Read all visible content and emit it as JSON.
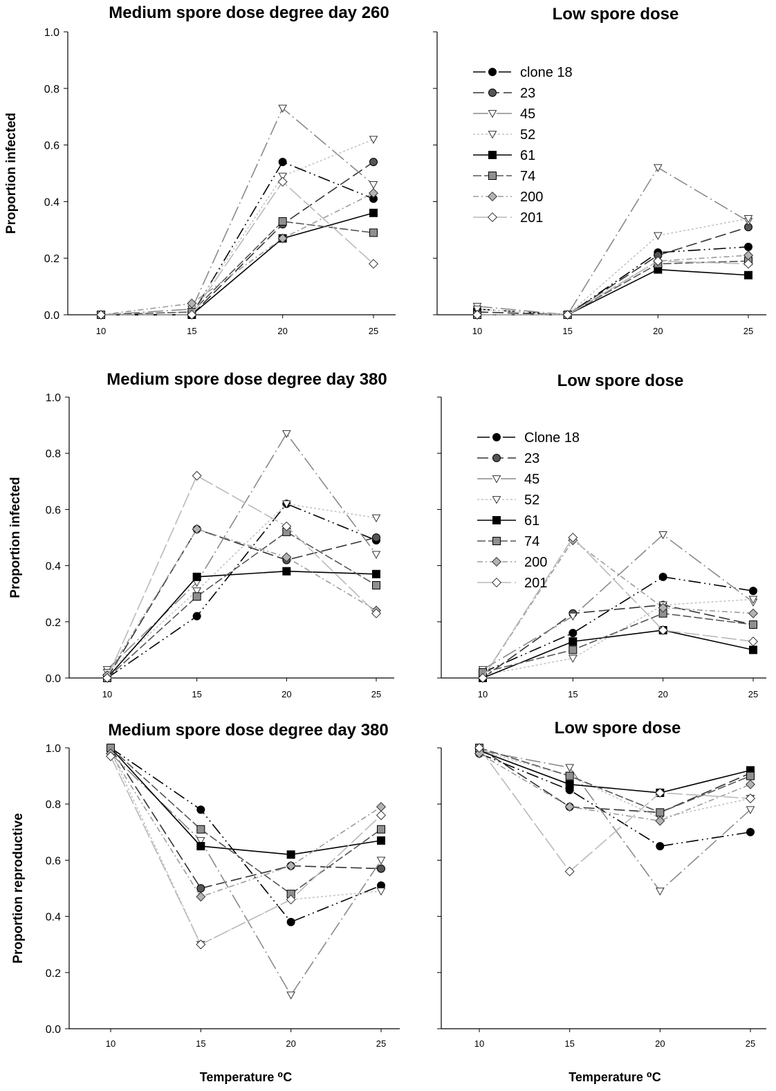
{
  "chart_data": [
    {
      "type": "line",
      "title": "Medium spore dose degree day 260",
      "ylabel": "Proportion  infected",
      "xlabel": "",
      "x": [
        10,
        15,
        20,
        25
      ],
      "ylim": [
        0,
        1
      ],
      "yticks": [
        "0.0",
        "0.2",
        "0.4",
        "0.6",
        "0.8",
        "1.0"
      ],
      "xticks": [
        "10",
        "15",
        "20",
        "25"
      ],
      "legend": null,
      "series": [
        {
          "name": "clone 18",
          "values": [
            0.0,
            0.0,
            0.54,
            0.41
          ]
        },
        {
          "name": "23",
          "values": [
            0.0,
            0.0,
            0.32,
            0.54
          ]
        },
        {
          "name": "45",
          "values": [
            0.0,
            0.02,
            0.73,
            0.46
          ]
        },
        {
          "name": "52",
          "values": [
            0.0,
            0.01,
            0.49,
            0.62
          ]
        },
        {
          "name": "61",
          "values": [
            0.0,
            0.0,
            0.27,
            0.36
          ]
        },
        {
          "name": "74",
          "values": [
            0.0,
            0.01,
            0.33,
            0.29
          ]
        },
        {
          "name": "200",
          "values": [
            0.0,
            0.04,
            0.27,
            0.43
          ]
        },
        {
          "name": "201",
          "values": [
            0.0,
            0.0,
            0.47,
            0.18
          ]
        }
      ]
    },
    {
      "type": "line",
      "title": "Low spore dose",
      "ylabel": "",
      "xlabel": "",
      "x": [
        10,
        15,
        20,
        25
      ],
      "ylim": [
        0,
        1
      ],
      "yticks": [],
      "xticks": [
        "10",
        "15",
        "20",
        "25"
      ],
      "legend": {
        "position": "top-left",
        "labels": [
          "clone 18",
          "23",
          "45",
          "52",
          "61",
          "74",
          "200",
          "201"
        ]
      },
      "series": [
        {
          "name": "clone 18",
          "values": [
            0.02,
            0.0,
            0.22,
            0.24
          ]
        },
        {
          "name": "23",
          "values": [
            0.01,
            0.0,
            0.21,
            0.31
          ]
        },
        {
          "name": "45",
          "values": [
            0.03,
            0.0,
            0.52,
            0.33
          ]
        },
        {
          "name": "52",
          "values": [
            0.02,
            0.0,
            0.28,
            0.34
          ]
        },
        {
          "name": "61",
          "values": [
            0.0,
            0.0,
            0.16,
            0.14
          ]
        },
        {
          "name": "74",
          "values": [
            0.0,
            0.0,
            0.18,
            0.19
          ]
        },
        {
          "name": "200",
          "values": [
            0.0,
            0.0,
            0.19,
            0.21
          ]
        },
        {
          "name": "201",
          "values": [
            0.0,
            0.0,
            0.19,
            0.18
          ]
        }
      ]
    },
    {
      "type": "line",
      "title": "Medium spore dose degree day 380",
      "ylabel": "Proportion  infected",
      "xlabel": "",
      "x": [
        10,
        15,
        20,
        25
      ],
      "ylim": [
        0,
        1
      ],
      "yticks": [
        "0.0",
        "0.2",
        "0.4",
        "0.6",
        "0.8",
        "1.0"
      ],
      "xticks": [
        "10",
        "15",
        "20",
        "25"
      ],
      "legend": null,
      "series": [
        {
          "name": "Clone 18",
          "values": [
            0.0,
            0.22,
            0.62,
            0.49
          ]
        },
        {
          "name": "23",
          "values": [
            0.0,
            0.53,
            0.42,
            0.5
          ]
        },
        {
          "name": "45",
          "values": [
            0.03,
            0.34,
            0.87,
            0.44
          ]
        },
        {
          "name": "52",
          "values": [
            0.02,
            0.31,
            0.62,
            0.57
          ]
        },
        {
          "name": "61",
          "values": [
            0.0,
            0.36,
            0.38,
            0.37
          ]
        },
        {
          "name": "74",
          "values": [
            0.0,
            0.29,
            0.52,
            0.33
          ]
        },
        {
          "name": "200",
          "values": [
            0.01,
            0.53,
            0.43,
            0.24
          ]
        },
        {
          "name": "201",
          "values": [
            0.0,
            0.72,
            0.54,
            0.23
          ]
        }
      ]
    },
    {
      "type": "line",
      "title": "Low spore dose",
      "ylabel": "",
      "xlabel": "",
      "x": [
        10,
        15,
        20,
        25
      ],
      "ylim": [
        0,
        1
      ],
      "yticks": [],
      "xticks": [
        "10",
        "15",
        "20",
        "25"
      ],
      "legend": {
        "position": "top-left",
        "labels": [
          "Clone 18",
          "23",
          "45",
          "52",
          "61",
          "74",
          "200",
          "201"
        ]
      },
      "series": [
        {
          "name": "Clone 18",
          "values": [
            0.02,
            0.16,
            0.36,
            0.31
          ]
        },
        {
          "name": "23",
          "values": [
            0.0,
            0.23,
            0.26,
            0.19
          ]
        },
        {
          "name": "45",
          "values": [
            0.03,
            0.22,
            0.51,
            0.27
          ]
        },
        {
          "name": "52",
          "values": [
            0.01,
            0.07,
            0.26,
            0.28
          ]
        },
        {
          "name": "61",
          "values": [
            0.0,
            0.13,
            0.17,
            0.1
          ]
        },
        {
          "name": "74",
          "values": [
            0.02,
            0.1,
            0.23,
            0.19
          ]
        },
        {
          "name": "200",
          "values": [
            0.0,
            0.49,
            0.25,
            0.23
          ]
        },
        {
          "name": "201",
          "values": [
            0.0,
            0.5,
            0.17,
            0.13
          ]
        }
      ]
    },
    {
      "type": "line",
      "title": "Medium spore dose degree day 380",
      "ylabel": "Proportion  reproductive",
      "xlabel": "Temperature ⁰C",
      "x": [
        10,
        15,
        20,
        25
      ],
      "ylim": [
        0,
        1
      ],
      "yticks": [
        "0.0",
        "0.2",
        "0.4",
        "0.6",
        "0.8",
        "1.0"
      ],
      "xticks": [
        "10",
        "15",
        "20",
        "25"
      ],
      "legend": null,
      "series": [
        {
          "name": "Clone 18",
          "values": [
            1.0,
            0.78,
            0.38,
            0.51
          ]
        },
        {
          "name": "23",
          "values": [
            1.0,
            0.5,
            0.58,
            0.57
          ]
        },
        {
          "name": "45",
          "values": [
            0.98,
            0.67,
            0.12,
            0.6
          ]
        },
        {
          "name": "52",
          "values": [
            0.99,
            0.3,
            0.46,
            0.49
          ]
        },
        {
          "name": "61",
          "values": [
            1.0,
            0.65,
            0.62,
            0.67
          ]
        },
        {
          "name": "74",
          "values": [
            1.0,
            0.71,
            0.48,
            0.71
          ]
        },
        {
          "name": "200",
          "values": [
            0.98,
            0.47,
            0.58,
            0.79
          ]
        },
        {
          "name": "201",
          "values": [
            0.97,
            0.3,
            0.46,
            0.76
          ]
        }
      ]
    },
    {
      "type": "line",
      "title": "Low spore dose",
      "ylabel": "",
      "xlabel": "Temperature ⁰C",
      "x": [
        10,
        15,
        20,
        25
      ],
      "ylim": [
        0,
        1
      ],
      "yticks": [],
      "xticks": [
        "10",
        "15",
        "20",
        "25"
      ],
      "legend": null,
      "series": [
        {
          "name": "Clone 18",
          "values": [
            0.98,
            0.85,
            0.65,
            0.7
          ]
        },
        {
          "name": "23",
          "values": [
            1.0,
            0.79,
            0.77,
            0.91
          ]
        },
        {
          "name": "45",
          "values": [
            0.99,
            0.93,
            0.49,
            0.78
          ]
        },
        {
          "name": "52",
          "values": [
            0.99,
            0.9,
            0.75,
            0.82
          ]
        },
        {
          "name": "61",
          "values": [
            0.99,
            0.87,
            0.84,
            0.92
          ]
        },
        {
          "name": "74",
          "values": [
            1.0,
            0.9,
            0.77,
            0.9
          ]
        },
        {
          "name": "200",
          "values": [
            0.98,
            0.79,
            0.74,
            0.87
          ]
        },
        {
          "name": "201",
          "values": [
            1.0,
            0.56,
            0.84,
            0.82
          ]
        }
      ]
    }
  ],
  "series_styles": [
    {
      "color": "#000000",
      "fill": "#000000",
      "marker": "circle",
      "dash": "18,5,2,5,2,5"
    },
    {
      "color": "#333333",
      "fill": "#555555",
      "marker": "circle",
      "dash": "16,6"
    },
    {
      "color": "#8a8a8a",
      "fill": "#ffffff",
      "marker": "triangle",
      "dash": "22,5,2,5"
    },
    {
      "color": "#c4c4c4",
      "fill": "#ffffff",
      "marker": "triangle",
      "dash": "3,3"
    },
    {
      "color": "#000000",
      "fill": "#000000",
      "marker": "square",
      "dash": ""
    },
    {
      "color": "#555555",
      "fill": "#8f8f8f",
      "marker": "square",
      "dash": "12,4"
    },
    {
      "color": "#9b9b9b",
      "fill": "#b3b3b3",
      "marker": "diamond",
      "dash": "8,4,2,4"
    },
    {
      "color": "#b9b9b9",
      "fill": "#ffffff",
      "marker": "diamond",
      "dash": "22,5"
    }
  ]
}
